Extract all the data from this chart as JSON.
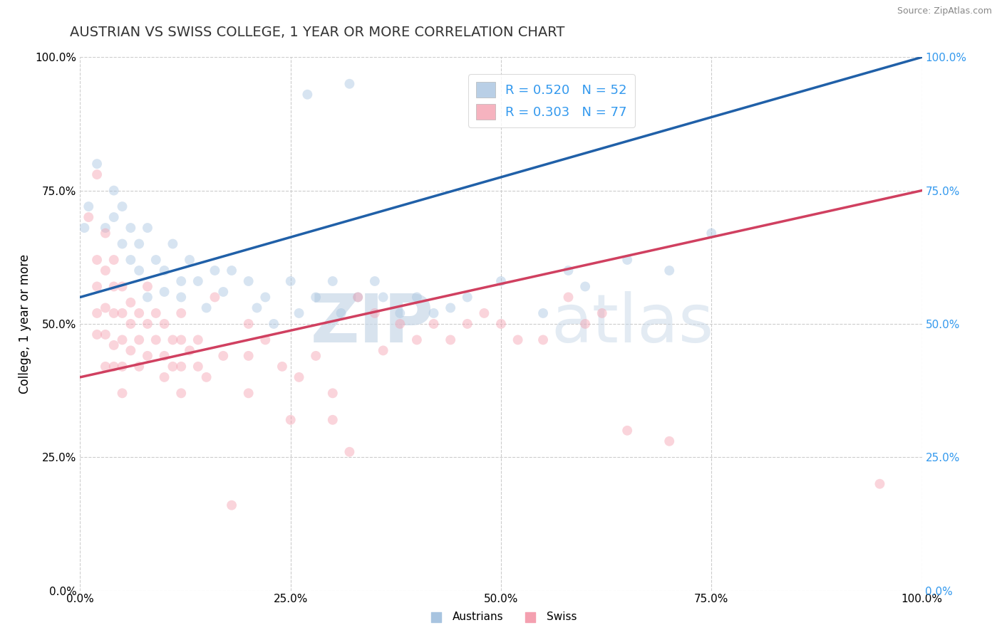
{
  "title": "AUSTRIAN VS SWISS COLLEGE, 1 YEAR OR MORE CORRELATION CHART",
  "source_text": "Source: ZipAtlas.com",
  "ylabel": "College, 1 year or more",
  "xlim": [
    0.0,
    1.0
  ],
  "ylim": [
    0.0,
    1.0
  ],
  "xticks": [
    0.0,
    0.25,
    0.5,
    0.75,
    1.0
  ],
  "yticks": [
    0.0,
    0.25,
    0.5,
    0.75,
    1.0
  ],
  "xticklabels": [
    "0.0%",
    "25.0%",
    "50.0%",
    "75.0%",
    "100.0%"
  ],
  "yticklabels": [
    "0.0%",
    "25.0%",
    "50.0%",
    "75.0%",
    "100.0%"
  ],
  "right_yticklabels": [
    "0.0%",
    "25.0%",
    "50.0%",
    "75.0%",
    "100.0%"
  ],
  "austrians_R": 0.52,
  "austrians_N": 52,
  "swiss_R": 0.303,
  "swiss_N": 77,
  "austrians_color": "#a8c4e0",
  "swiss_color": "#f4a0b0",
  "austrians_line_color": "#2060a8",
  "swiss_line_color": "#d04060",
  "legend_austrians_label": "Austrians",
  "legend_swiss_label": "Swiss",
  "watermark_zip": "ZIP",
  "watermark_atlas": "atlas",
  "background_color": "#ffffff",
  "grid_color": "#cccccc",
  "title_fontsize": 14,
  "axis_fontsize": 12,
  "tick_fontsize": 11,
  "right_tick_color": "#3399ee",
  "marker_size": 100,
  "marker_alpha": 0.45,
  "line_width": 2.5,
  "aus_line_x0": 0.0,
  "aus_line_y0": 0.55,
  "aus_line_x1": 1.0,
  "aus_line_y1": 1.0,
  "sw_line_x0": 0.0,
  "sw_line_y0": 0.4,
  "sw_line_x1": 1.0,
  "sw_line_y1": 0.75,
  "austrians_points": [
    [
      0.005,
      0.68
    ],
    [
      0.01,
      0.72
    ],
    [
      0.02,
      0.8
    ],
    [
      0.03,
      0.68
    ],
    [
      0.04,
      0.75
    ],
    [
      0.04,
      0.7
    ],
    [
      0.05,
      0.65
    ],
    [
      0.05,
      0.72
    ],
    [
      0.06,
      0.68
    ],
    [
      0.06,
      0.62
    ],
    [
      0.07,
      0.65
    ],
    [
      0.07,
      0.6
    ],
    [
      0.08,
      0.68
    ],
    [
      0.08,
      0.55
    ],
    [
      0.09,
      0.62
    ],
    [
      0.1,
      0.6
    ],
    [
      0.1,
      0.56
    ],
    [
      0.11,
      0.65
    ],
    [
      0.12,
      0.58
    ],
    [
      0.12,
      0.55
    ],
    [
      0.13,
      0.62
    ],
    [
      0.14,
      0.58
    ],
    [
      0.15,
      0.53
    ],
    [
      0.16,
      0.6
    ],
    [
      0.17,
      0.56
    ],
    [
      0.18,
      0.6
    ],
    [
      0.2,
      0.58
    ],
    [
      0.21,
      0.53
    ],
    [
      0.22,
      0.55
    ],
    [
      0.23,
      0.5
    ],
    [
      0.25,
      0.58
    ],
    [
      0.26,
      0.52
    ],
    [
      0.28,
      0.55
    ],
    [
      0.3,
      0.58
    ],
    [
      0.31,
      0.52
    ],
    [
      0.33,
      0.55
    ],
    [
      0.35,
      0.58
    ],
    [
      0.36,
      0.55
    ],
    [
      0.38,
      0.52
    ],
    [
      0.4,
      0.55
    ],
    [
      0.42,
      0.52
    ],
    [
      0.44,
      0.53
    ],
    [
      0.46,
      0.55
    ],
    [
      0.5,
      0.58
    ],
    [
      0.55,
      0.52
    ],
    [
      0.58,
      0.6
    ],
    [
      0.6,
      0.57
    ],
    [
      0.65,
      0.62
    ],
    [
      0.7,
      0.6
    ],
    [
      0.75,
      0.67
    ],
    [
      0.27,
      0.93
    ],
    [
      0.32,
      0.95
    ]
  ],
  "swiss_points": [
    [
      0.01,
      0.7
    ],
    [
      0.02,
      0.62
    ],
    [
      0.02,
      0.57
    ],
    [
      0.02,
      0.48
    ],
    [
      0.02,
      0.52
    ],
    [
      0.02,
      0.78
    ],
    [
      0.03,
      0.67
    ],
    [
      0.03,
      0.6
    ],
    [
      0.03,
      0.53
    ],
    [
      0.03,
      0.48
    ],
    [
      0.03,
      0.42
    ],
    [
      0.04,
      0.62
    ],
    [
      0.04,
      0.57
    ],
    [
      0.04,
      0.52
    ],
    [
      0.04,
      0.46
    ],
    [
      0.04,
      0.42
    ],
    [
      0.05,
      0.57
    ],
    [
      0.05,
      0.52
    ],
    [
      0.05,
      0.47
    ],
    [
      0.05,
      0.42
    ],
    [
      0.05,
      0.37
    ],
    [
      0.06,
      0.54
    ],
    [
      0.06,
      0.5
    ],
    [
      0.06,
      0.45
    ],
    [
      0.07,
      0.52
    ],
    [
      0.07,
      0.47
    ],
    [
      0.07,
      0.42
    ],
    [
      0.08,
      0.57
    ],
    [
      0.08,
      0.5
    ],
    [
      0.08,
      0.44
    ],
    [
      0.09,
      0.52
    ],
    [
      0.09,
      0.47
    ],
    [
      0.1,
      0.5
    ],
    [
      0.1,
      0.44
    ],
    [
      0.1,
      0.4
    ],
    [
      0.11,
      0.47
    ],
    [
      0.11,
      0.42
    ],
    [
      0.12,
      0.52
    ],
    [
      0.12,
      0.47
    ],
    [
      0.12,
      0.42
    ],
    [
      0.12,
      0.37
    ],
    [
      0.13,
      0.45
    ],
    [
      0.14,
      0.47
    ],
    [
      0.14,
      0.42
    ],
    [
      0.15,
      0.4
    ],
    [
      0.16,
      0.55
    ],
    [
      0.17,
      0.44
    ],
    [
      0.18,
      0.16
    ],
    [
      0.2,
      0.5
    ],
    [
      0.2,
      0.44
    ],
    [
      0.2,
      0.37
    ],
    [
      0.22,
      0.47
    ],
    [
      0.24,
      0.42
    ],
    [
      0.25,
      0.32
    ],
    [
      0.26,
      0.4
    ],
    [
      0.28,
      0.44
    ],
    [
      0.3,
      0.37
    ],
    [
      0.3,
      0.32
    ],
    [
      0.32,
      0.26
    ],
    [
      0.33,
      0.55
    ],
    [
      0.35,
      0.52
    ],
    [
      0.36,
      0.45
    ],
    [
      0.38,
      0.5
    ],
    [
      0.4,
      0.47
    ],
    [
      0.42,
      0.5
    ],
    [
      0.44,
      0.47
    ],
    [
      0.46,
      0.5
    ],
    [
      0.48,
      0.52
    ],
    [
      0.5,
      0.5
    ],
    [
      0.52,
      0.47
    ],
    [
      0.55,
      0.47
    ],
    [
      0.58,
      0.55
    ],
    [
      0.6,
      0.5
    ],
    [
      0.62,
      0.52
    ],
    [
      0.65,
      0.3
    ],
    [
      0.7,
      0.28
    ],
    [
      0.95,
      0.2
    ]
  ]
}
